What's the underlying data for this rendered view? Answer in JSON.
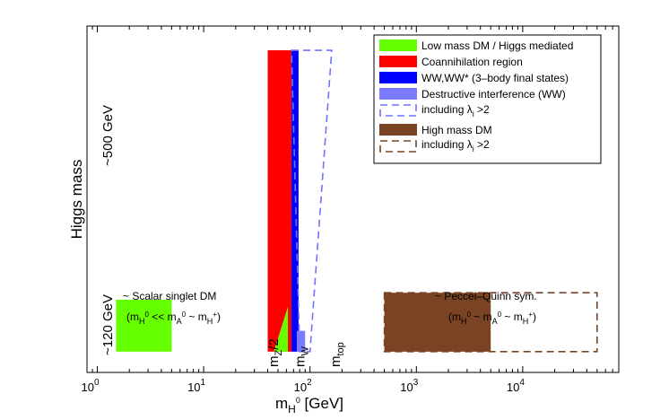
{
  "chart_data": {
    "type": "region-map",
    "xscale": "log",
    "xlim": [
      0.8,
      80000
    ],
    "xlabel": {
      "main": "m",
      "sub": "H",
      "sup": "0",
      "unit": " [GeV]"
    },
    "ylabel": "Higgs mass",
    "x_ticks": [
      {
        "value": 1,
        "base": "10",
        "exp": "0"
      },
      {
        "value": 10,
        "base": "10",
        "exp": "1"
      },
      {
        "value": 100,
        "base": "10",
        "exp": "2"
      },
      {
        "value": 1000,
        "base": "10",
        "exp": "3"
      },
      {
        "value": 10000,
        "base": "10",
        "exp": "4"
      }
    ],
    "y_markers": [
      {
        "label": "~500 GeV",
        "level": 0.72
      },
      {
        "label": "~120 GeV",
        "level": 0.16
      }
    ],
    "vertical_labels": [
      {
        "main": "m",
        "sub": "Z",
        "suffix": "/2",
        "value": 45.6
      },
      {
        "main": "m",
        "sub": "W",
        "suffix": "",
        "value": 80.4
      },
      {
        "main": "m",
        "sub": "top",
        "suffix": "",
        "value": 173
      }
    ],
    "regions": [
      {
        "name": "Low mass DM / Higgs mediated",
        "color": "#66ff00",
        "style": "filled",
        "x_range": [
          1.5,
          5
        ],
        "y_range": [
          0.06,
          0.21
        ]
      },
      {
        "name": "Coannihilation region",
        "color": "#ff0000",
        "style": "filled",
        "x_range": [
          40,
          67
        ],
        "y_range": [
          0.06,
          0.93
        ]
      },
      {
        "name": "WW,WW* (3-body final states)",
        "color": "#0000ff",
        "style": "filled",
        "x_range": [
          67,
          78
        ],
        "y_range": [
          0.06,
          0.93
        ]
      },
      {
        "name": "Destructive interference (WW)",
        "color": "#7b7bff",
        "style": "filled",
        "x_range": [
          73,
          90
        ],
        "y_range": [
          0.06,
          0.93
        ]
      },
      {
        "name": "including λi >2",
        "color": "#6f73ff",
        "style": "dashed",
        "x_range": [
          80,
          160
        ],
        "y_range": [
          0.06,
          0.93
        ]
      },
      {
        "name": "High mass DM",
        "color": "#7a4323",
        "style": "filled",
        "x_range": [
          500,
          5000
        ],
        "y_range": [
          0.06,
          0.23
        ]
      },
      {
        "name": "including λi >2",
        "color": "#7a4323",
        "style": "dashed",
        "x_range": [
          500,
          50000
        ],
        "y_range": [
          0.06,
          0.23
        ]
      }
    ],
    "green_triangle": {
      "color": "#66ff00",
      "x_range": [
        45.6,
        62
      ],
      "y_range": [
        0.06,
        0.19
      ]
    },
    "legend": {
      "position": "top-right",
      "entries": [
        {
          "label": "Low mass DM / Higgs mediated",
          "color": "#66ff00",
          "style": "filled"
        },
        {
          "label": "Coannihilation region",
          "color": "#ff0000",
          "style": "filled"
        },
        {
          "label": "WW,WW* (3–body final states)",
          "color": "#0000ff",
          "style": "filled"
        },
        {
          "label": "Destructive interference (WW)",
          "color": "#7b7bff",
          "style": "filled"
        },
        {
          "label": "including λ",
          "sub": "i",
          "tail": " >2",
          "color": "#6f73ff",
          "style": "dashed"
        },
        {
          "label": "High mass DM",
          "color": "#7a4323",
          "style": "filled"
        },
        {
          "label": "including λ",
          "sub": "i",
          "tail": " >2",
          "color": "#7a4323",
          "style": "dashed"
        }
      ]
    },
    "annotations": {
      "scalar": {
        "line1": "~ Scalar singlet DM",
        "expr": [
          "(m",
          "H",
          "0",
          " << m",
          "A",
          "0",
          " ~ m",
          "H",
          "+",
          ")"
        ]
      },
      "pq": {
        "line1": "~ Peccei–Quinn sym.",
        "expr": [
          "(m",
          "H",
          "0",
          " ~ m",
          "A",
          "0",
          " ~ m",
          "H",
          "+",
          ")"
        ]
      }
    }
  }
}
